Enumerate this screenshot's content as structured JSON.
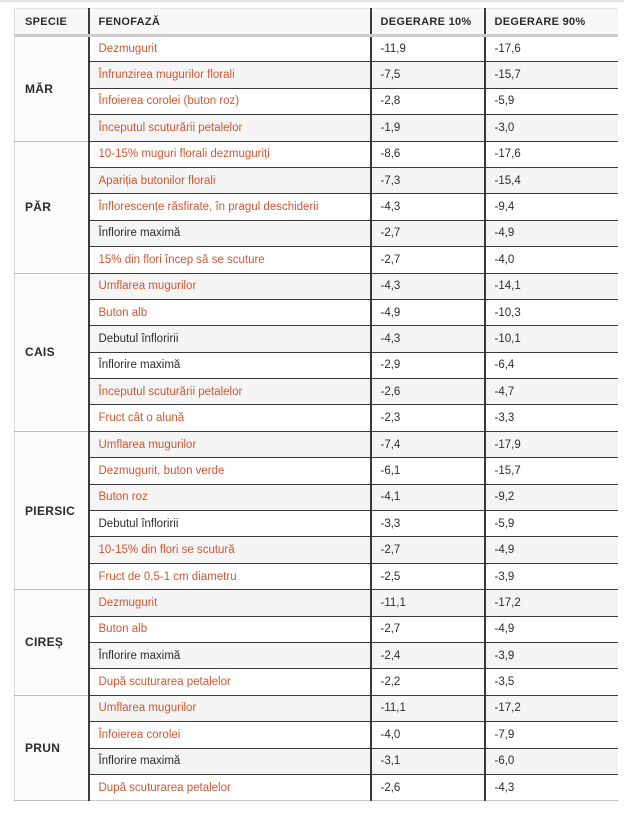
{
  "colors": {
    "accent_phase_text": "#d5542f",
    "normal_text": "#2d2d2d",
    "row_alt_background": "#f5f5f5",
    "rule_dark": "#383838",
    "rule_light": "#c9c9c9"
  },
  "chart_data": {
    "type": "table",
    "columns": [
      "SPECIE",
      "FENOFAZĂ",
      "DEGERARE 10%",
      "DEGERARE 90%"
    ],
    "groups": [
      {
        "species": "MĂR",
        "rows": [
          {
            "phase": "Dezmugurit",
            "d10": "-11,9",
            "d90": "-17,6",
            "highlight": true
          },
          {
            "phase": "Înfrunzirea mugurilor florali",
            "d10": "-7,5",
            "d90": "-15,7",
            "highlight": true
          },
          {
            "phase": "Înfoierea corolei (buton roz)",
            "d10": "-2,8",
            "d90": "-5,9",
            "highlight": true
          },
          {
            "phase": "Începutul scuturării petalelor",
            "d10": "-1,9",
            "d90": "-3,0",
            "highlight": true
          }
        ]
      },
      {
        "species": "PĂR",
        "rows": [
          {
            "phase": "10-15% muguri florali dezmuguriți",
            "d10": "-8,6",
            "d90": "-17,6",
            "highlight": true
          },
          {
            "phase": "Apariția butonilor florali",
            "d10": "-7,3",
            "d90": "-15,4",
            "highlight": true
          },
          {
            "phase": "Înflorescențe răsfirate, în pragul deschiderii",
            "d10": "-4,3",
            "d90": "-9,4",
            "highlight": true
          },
          {
            "phase": "Înflorire maximă",
            "d10": "-2,7",
            "d90": "-4,9",
            "highlight": false
          },
          {
            "phase": "15% din flori încep să se scuture",
            "d10": "-2,7",
            "d90": "-4,0",
            "highlight": true
          }
        ]
      },
      {
        "species": "CAIS",
        "rows": [
          {
            "phase": "Umflarea mugurilor",
            "d10": "-4,3",
            "d90": "-14,1",
            "highlight": true
          },
          {
            "phase": "Buton alb",
            "d10": "-4,9",
            "d90": "-10,3",
            "highlight": true
          },
          {
            "phase": "Debutul înfloririi",
            "d10": "-4,3",
            "d90": "-10,1",
            "highlight": false
          },
          {
            "phase": "Înflorire maximă",
            "d10": "-2,9",
            "d90": "-6,4",
            "highlight": false
          },
          {
            "phase": "Începutul scuturării petalelor",
            "d10": "-2,6",
            "d90": "-4,7",
            "highlight": true
          },
          {
            "phase": "Fruct cât o alună",
            "d10": "-2,3",
            "d90": "-3,3",
            "highlight": true
          }
        ]
      },
      {
        "species": "PIERSIC",
        "rows": [
          {
            "phase": "Umflarea mugurilor",
            "d10": "-7,4",
            "d90": "-17,9",
            "highlight": true
          },
          {
            "phase": "Dezmugurit, buton verde",
            "d10": "-6,1",
            "d90": "-15,7",
            "highlight": true
          },
          {
            "phase": "Buton roz",
            "d10": "-4,1",
            "d90": "-9,2",
            "highlight": true
          },
          {
            "phase": "Debutul înfloririi",
            "d10": "-3,3",
            "d90": "-5,9",
            "highlight": false
          },
          {
            "phase": "10-15% din flori se scutură",
            "d10": "-2,7",
            "d90": "-4,9",
            "highlight": true
          },
          {
            "phase": "Fruct de 0,5-1 cm diametru",
            "d10": "-2,5",
            "d90": "-3,9",
            "highlight": true
          }
        ]
      },
      {
        "species": "CIREȘ",
        "rows": [
          {
            "phase": "Dezmugurit",
            "d10": "-11,1",
            "d90": "-17,2",
            "highlight": true
          },
          {
            "phase": "Buton alb",
            "d10": "-2,7",
            "d90": "-4,9",
            "highlight": true
          },
          {
            "phase": "Înflorire maximă",
            "d10": "-2,4",
            "d90": "-3,9",
            "highlight": false
          },
          {
            "phase": "După scuturarea petalelor",
            "d10": "-2,2",
            "d90": "-3,5",
            "highlight": true
          }
        ]
      },
      {
        "species": "PRUN",
        "rows": [
          {
            "phase": "Umflarea mugurilor",
            "d10": "-11,1",
            "d90": "-17,2",
            "highlight": true
          },
          {
            "phase": "Înfoierea corolei",
            "d10": "-4,0",
            "d90": "-7,9",
            "highlight": true
          },
          {
            "phase": "Înflorire maximă",
            "d10": "-3,1",
            "d90": "-6,0",
            "highlight": false
          },
          {
            "phase": "După scuturarea petalelor",
            "d10": "-2,6",
            "d90": "-4,3",
            "highlight": true
          }
        ]
      }
    ]
  }
}
